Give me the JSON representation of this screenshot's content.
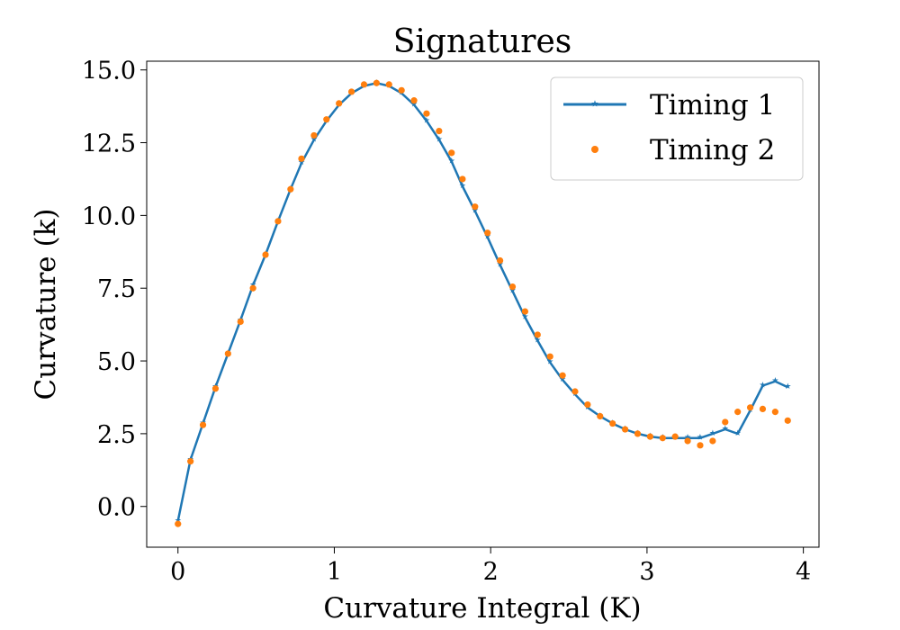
{
  "chart_data": {
    "type": "line",
    "title": "Signatures",
    "xlabel": "Curvature Integral (K)",
    "ylabel": "Curvature (k)",
    "xlim": [
      -0.2,
      4.1
    ],
    "ylim": [
      -1.4,
      15.3
    ],
    "xticks": [
      0,
      1,
      2,
      3,
      4
    ],
    "xtick_labels": [
      "0",
      "1",
      "2",
      "3",
      "4"
    ],
    "yticks": [
      0,
      2.5,
      5,
      7.5,
      10,
      12.5,
      15
    ],
    "ytick_labels": [
      "0.0",
      "2.5",
      "5.0",
      "7.5",
      "10.0",
      "12.5",
      "15.0"
    ],
    "grid": false,
    "legend_position": "top-right",
    "series": [
      {
        "name": "Timing 1",
        "style": "line-with-star-markers",
        "color": "#1f77b4",
        "x": [
          0.0,
          0.08,
          0.16,
          0.24,
          0.32,
          0.4,
          0.48,
          0.56,
          0.64,
          0.72,
          0.79,
          0.87,
          0.95,
          1.03,
          1.11,
          1.19,
          1.27,
          1.35,
          1.43,
          1.51,
          1.59,
          1.67,
          1.75,
          1.82,
          1.9,
          1.98,
          2.06,
          2.14,
          2.22,
          2.3,
          2.38,
          2.46,
          2.54,
          2.62,
          2.7,
          2.78,
          2.86,
          2.94,
          3.02,
          3.1,
          3.18,
          3.26,
          3.34,
          3.42,
          3.5,
          3.58,
          3.66,
          3.74,
          3.82,
          3.9
        ],
        "y": [
          -0.5,
          1.6,
          2.85,
          4.1,
          5.25,
          6.4,
          7.6,
          8.65,
          9.8,
          10.9,
          11.8,
          12.6,
          13.25,
          13.8,
          14.2,
          14.45,
          14.55,
          14.45,
          14.2,
          13.8,
          13.25,
          12.6,
          11.85,
          11.0,
          10.15,
          9.25,
          8.3,
          7.4,
          6.5,
          5.7,
          4.95,
          4.35,
          3.85,
          3.4,
          3.1,
          2.85,
          2.65,
          2.5,
          2.4,
          2.35,
          2.35,
          2.35,
          2.35,
          2.5,
          2.65,
          2.5,
          3.3,
          4.15,
          4.3,
          4.1
        ]
      },
      {
        "name": "Timing 2",
        "style": "markers-only",
        "color": "#ff7f0e",
        "x": [
          0.0,
          0.08,
          0.16,
          0.24,
          0.32,
          0.4,
          0.48,
          0.56,
          0.64,
          0.72,
          0.79,
          0.87,
          0.95,
          1.03,
          1.11,
          1.19,
          1.27,
          1.35,
          1.43,
          1.51,
          1.59,
          1.67,
          1.75,
          1.82,
          1.9,
          1.98,
          2.06,
          2.14,
          2.22,
          2.3,
          2.38,
          2.46,
          2.54,
          2.62,
          2.7,
          2.78,
          2.86,
          2.94,
          3.02,
          3.1,
          3.18,
          3.26,
          3.34,
          3.42,
          3.5,
          3.58,
          3.66,
          3.74,
          3.82,
          3.9
        ],
        "y": [
          -0.6,
          1.55,
          2.8,
          4.05,
          5.25,
          6.35,
          7.5,
          8.65,
          9.8,
          10.9,
          11.95,
          12.75,
          13.3,
          13.85,
          14.25,
          14.5,
          14.55,
          14.5,
          14.3,
          13.95,
          13.5,
          12.9,
          12.15,
          11.25,
          10.3,
          9.4,
          8.45,
          7.55,
          6.7,
          5.9,
          5.15,
          4.5,
          3.95,
          3.5,
          3.1,
          2.85,
          2.65,
          2.5,
          2.4,
          2.35,
          2.4,
          2.25,
          2.1,
          2.25,
          2.9,
          3.25,
          3.4,
          3.35,
          3.25,
          2.95
        ]
      }
    ]
  }
}
